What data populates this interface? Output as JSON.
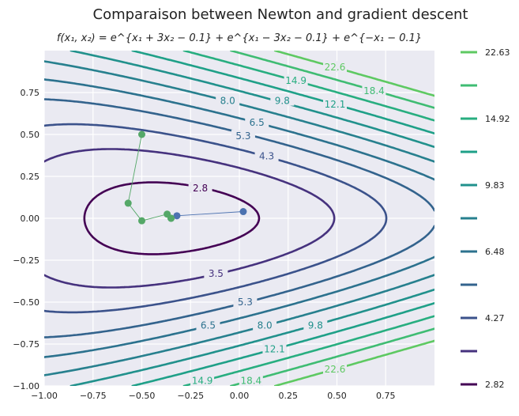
{
  "chart_data": {
    "type": "contour",
    "title": "Comparaison between Newton and gradient descent",
    "subtitle": "f(x₁, x₂) = e^{x₁ + 3x₂ − 0.1} + e^{x₁ − 3x₂ − 0.1} + e^{−x₁ − 0.1}",
    "xlabel": "",
    "ylabel": "",
    "xlim": [
      -1.0,
      1.0
    ],
    "ylim": [
      -1.0,
      1.0
    ],
    "grid": true,
    "x_ticks": [
      "−1.00",
      "−0.75",
      "−0.50",
      "−0.25",
      "0.00",
      "0.25",
      "0.50",
      "0.75"
    ],
    "y_ticks": [
      "−1.00",
      "−0.75",
      "−0.50",
      "−0.25",
      "0.00",
      "0.25",
      "0.50",
      "0.75"
    ],
    "contour_levels": [
      2.82,
      3.5,
      4.27,
      5.3,
      6.48,
      8.0,
      9.83,
      12.1,
      14.92,
      18.4,
      22.63
    ],
    "contour_labels": [
      "2.8",
      "3.5",
      "4.3",
      "5.3",
      "6.5",
      "8.0",
      "9.8",
      "12.1",
      "14.9",
      "18.4",
      "22.6"
    ],
    "colorbar_labels": [
      "22.63",
      "14.92",
      "9.83",
      "6.48",
      "4.27",
      "2.82"
    ],
    "series": [
      {
        "color": "#4c72b0",
        "points": [
          [
            0.02,
            0.04
          ],
          [
            -0.32,
            0.015
          ],
          [
            -0.35,
            0.0
          ]
        ]
      },
      {
        "color": "#55a868",
        "points": [
          [
            -0.5,
            0.5
          ],
          [
            -0.57,
            0.09
          ],
          [
            -0.5,
            -0.015
          ],
          [
            -0.37,
            0.025
          ],
          [
            -0.35,
            0.0
          ],
          [
            -0.35,
            0.0
          ]
        ]
      }
    ],
    "label_positions": [
      {
        "text": "2.8",
        "x": -0.2,
        "y": 0.18,
        "color": "#440154"
      },
      {
        "text": "3.5",
        "x": -0.12,
        "y": -0.33,
        "color": "#46327e"
      },
      {
        "text": "4.3",
        "x": 0.14,
        "y": 0.37,
        "color": "#3b528b"
      },
      {
        "text": "5.3",
        "x": 0.02,
        "y": 0.49,
        "color": "#33638d"
      },
      {
        "text": "5.3",
        "x": 0.03,
        "y": -0.5,
        "color": "#33638d"
      },
      {
        "text": "6.5",
        "x": 0.09,
        "y": 0.57,
        "color": "#2c728e"
      },
      {
        "text": "6.5",
        "x": -0.16,
        "y": -0.64,
        "color": "#2c728e"
      },
      {
        "text": "8.0",
        "x": -0.06,
        "y": 0.7,
        "color": "#27808e"
      },
      {
        "text": "8.0",
        "x": 0.13,
        "y": -0.64,
        "color": "#27808e"
      },
      {
        "text": "9.8",
        "x": 0.22,
        "y": 0.7,
        "color": "#21918c"
      },
      {
        "text": "9.8",
        "x": 0.39,
        "y": -0.64,
        "color": "#21918c"
      },
      {
        "text": "12.1",
        "x": 0.49,
        "y": 0.68,
        "color": "#1fa088"
      },
      {
        "text": "12.1",
        "x": 0.18,
        "y": -0.78,
        "color": "#1fa088"
      },
      {
        "text": "14.9",
        "x": 0.29,
        "y": 0.82,
        "color": "#28ae80"
      },
      {
        "text": "14.9",
        "x": -0.19,
        "y": -0.97,
        "color": "#28ae80"
      },
      {
        "text": "18.4",
        "x": 0.69,
        "y": 0.76,
        "color": "#3fbc73"
      },
      {
        "text": "18.4",
        "x": 0.06,
        "y": -0.97,
        "color": "#3fbc73"
      },
      {
        "text": "22.6",
        "x": 0.49,
        "y": 0.9,
        "color": "#5ec962"
      },
      {
        "text": "22.6",
        "x": 0.49,
        "y": -0.9,
        "color": "#5ec962"
      }
    ]
  }
}
